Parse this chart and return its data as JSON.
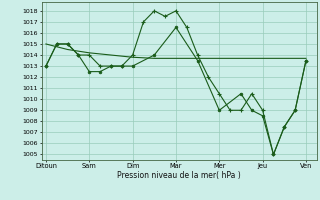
{
  "bg_color": "#cceee8",
  "grid_color": "#99ccbb",
  "line_color": "#1a5c1a",
  "marker_color": "#1a5c1a",
  "x_labels": [
    "Ditoun",
    "Sam",
    "Dim",
    "Mar",
    "Mer",
    "Jeu",
    "Ven"
  ],
  "x_ticks": [
    0,
    2,
    4,
    6,
    8,
    10,
    12
  ],
  "series1_x": [
    0,
    0.5,
    1.0,
    1.5,
    2.0,
    2.5,
    3.0,
    3.5,
    4.0,
    4.5,
    5.0,
    5.5,
    6.0,
    6.5,
    7.0,
    7.5,
    8.0,
    8.5,
    9.0,
    9.5,
    10.0,
    10.5,
    11.0,
    11.5,
    12.0
  ],
  "series1_y": [
    1013,
    1015,
    1015,
    1014,
    1014,
    1013,
    1013,
    1013,
    1014,
    1017,
    1018,
    1017.5,
    1018,
    1016.5,
    1014,
    1012,
    1010.5,
    1009,
    1009,
    1010.5,
    1009,
    1005,
    1007.5,
    1009,
    1013.5
  ],
  "series2_x": [
    0,
    1.0,
    2.0,
    3.0,
    4.0,
    5.0,
    6.0,
    7.0,
    8.0,
    9.0,
    10.0,
    11.0,
    12.0
  ],
  "series2_y": [
    1015,
    1014.5,
    1014.2,
    1014.0,
    1013.8,
    1013.7,
    1013.7,
    1013.7,
    1013.7,
    1013.7,
    1013.7,
    1013.7,
    1013.7
  ],
  "series3_x": [
    0,
    0.5,
    1.0,
    1.5,
    2.0,
    2.5,
    3.0,
    3.5,
    4.0,
    5.0,
    6.0,
    7.0,
    8.0,
    9.0,
    9.5,
    10.0,
    10.5,
    11.0,
    11.5,
    12.0
  ],
  "series3_y": [
    1013,
    1015,
    1015,
    1014,
    1012.5,
    1012.5,
    1013,
    1013,
    1013,
    1014,
    1016.5,
    1013.5,
    1009,
    1010.5,
    1009,
    1008.5,
    1005,
    1007.5,
    1009,
    1013.5
  ],
  "ylabel_text": "Pression niveau de la mer( hPa )",
  "ylim": [
    1004.5,
    1018.8
  ],
  "yticks": [
    1005,
    1006,
    1007,
    1008,
    1009,
    1010,
    1011,
    1012,
    1013,
    1014,
    1015,
    1016,
    1017,
    1018
  ]
}
